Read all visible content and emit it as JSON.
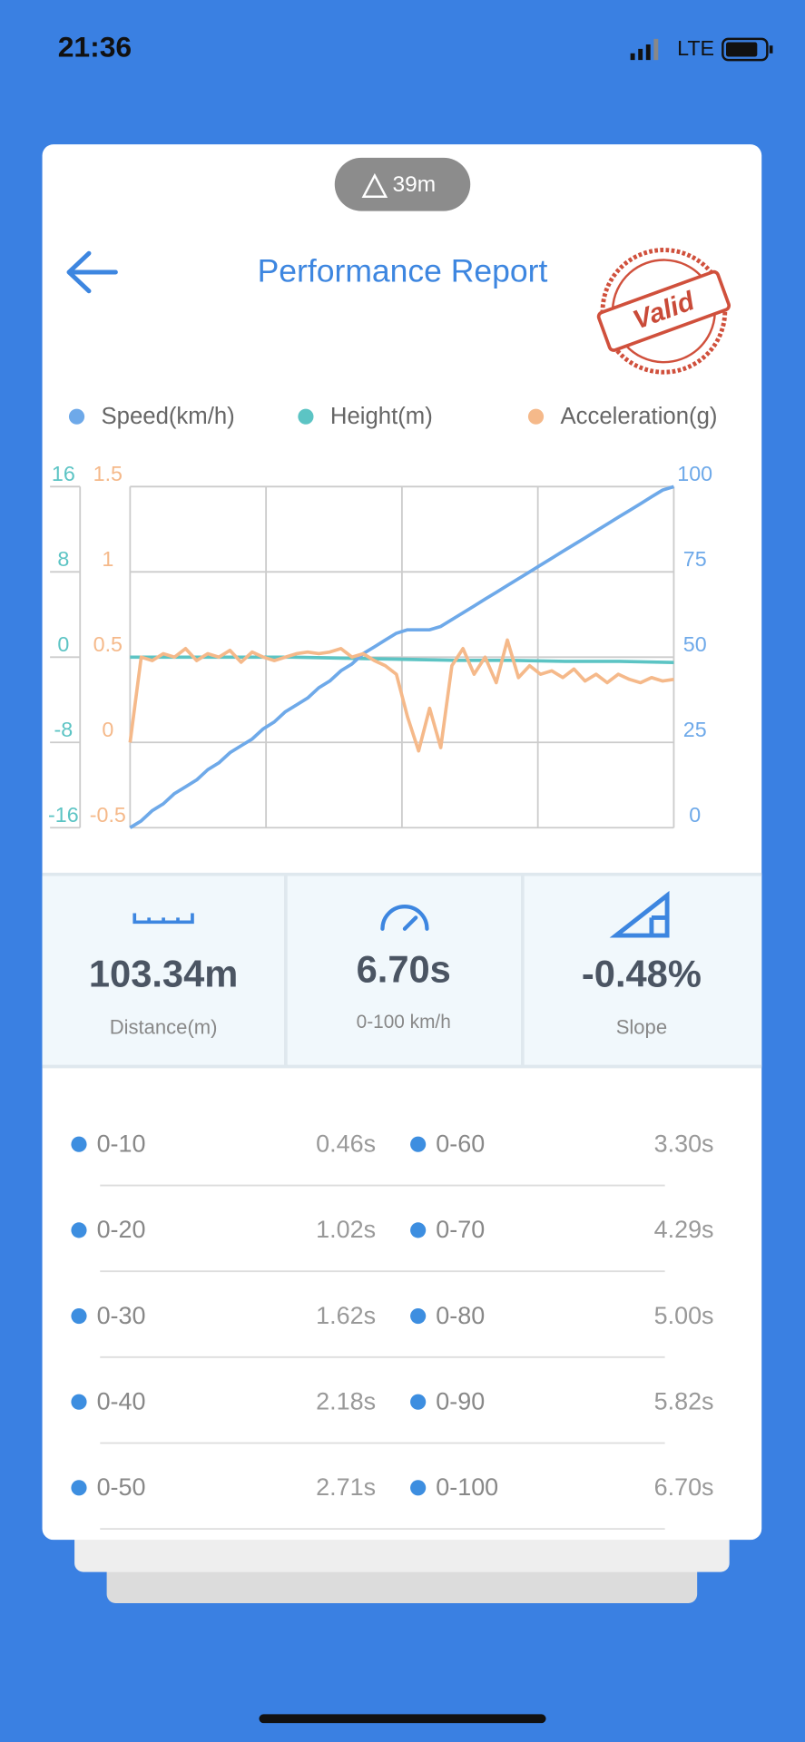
{
  "status_bar": {
    "time": "21:36",
    "network": "LTE"
  },
  "altitude_badge": "39m",
  "header": {
    "title": "Performance Report",
    "stamp": "Valid"
  },
  "chart_data": {
    "type": "line",
    "series": [
      {
        "name": "Speed(km/h)",
        "color": "#6ea9e9",
        "axis": "y2",
        "values": [
          0,
          2,
          5,
          7,
          10,
          12,
          14,
          17,
          19,
          22,
          24,
          26,
          29,
          31,
          34,
          36,
          38,
          41,
          43,
          46,
          48,
          51,
          53,
          55,
          57,
          58,
          58,
          58,
          59,
          61,
          63,
          65,
          67,
          69,
          71,
          73,
          75,
          77,
          79,
          81,
          83,
          85,
          87,
          89,
          91,
          93,
          95,
          97,
          99,
          100
        ]
      },
      {
        "name": "Height(m)",
        "color": "#5cc4c4",
        "values": [
          0,
          0,
          0,
          0,
          -0.1,
          -0.2,
          -0.3,
          -0.3,
          -0.4,
          -0.4,
          -0.5
        ]
      },
      {
        "name": "Acceleration(g)",
        "color": "#f5b98a",
        "axis": "y3",
        "values": [
          0,
          0.5,
          0.48,
          0.52,
          0.5,
          0.55,
          0.48,
          0.52,
          0.5,
          0.54,
          0.47,
          0.53,
          0.5,
          0.48,
          0.5,
          0.52,
          0.53,
          0.52,
          0.53,
          0.55,
          0.5,
          0.52,
          0.48,
          0.45,
          0.4,
          0.15,
          -0.05,
          0.2,
          -0.03,
          0.45,
          0.55,
          0.4,
          0.5,
          0.35,
          0.6,
          0.38,
          0.45,
          0.4,
          0.42,
          0.38,
          0.43,
          0.36,
          0.4,
          0.35,
          0.4,
          0.37,
          0.35,
          0.38,
          0.36,
          0.37
        ]
      }
    ],
    "ylim": [
      -16,
      16
    ],
    "yticks": [
      -16,
      -8,
      0,
      8,
      16
    ],
    "y2lim": [
      0,
      100
    ],
    "y2ticks": [
      0,
      25,
      50,
      75,
      100
    ],
    "y3lim": [
      -0.5,
      1.5
    ],
    "y3ticks": [
      -0.5,
      0,
      0.5,
      1,
      1.5
    ],
    "grid": true
  },
  "stats": [
    {
      "value": "103.34m",
      "label": "Distance(m)"
    },
    {
      "value": "6.70s",
      "label": "0-100 km/h"
    },
    {
      "value": "-0.48%",
      "label": "Slope"
    }
  ],
  "splits": [
    {
      "range": "0-10",
      "time": "0.46s"
    },
    {
      "range": "0-20",
      "time": "1.02s"
    },
    {
      "range": "0-30",
      "time": "1.62s"
    },
    {
      "range": "0-40",
      "time": "2.18s"
    },
    {
      "range": "0-50",
      "time": "2.71s"
    },
    {
      "range": "0-60",
      "time": "3.30s"
    },
    {
      "range": "0-70",
      "time": "4.29s"
    },
    {
      "range": "0-80",
      "time": "5.00s"
    },
    {
      "range": "0-90",
      "time": "5.82s"
    },
    {
      "range": "0-100",
      "time": "6.70s"
    }
  ]
}
